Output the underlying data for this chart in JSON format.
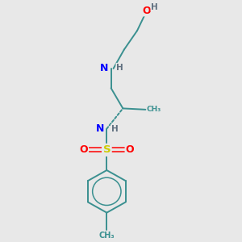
{
  "bg_color": "#e8e8e8",
  "atom_colors": {
    "C": "#3a9090",
    "N": "#0000ff",
    "O": "#ff0000",
    "S": "#cccc00",
    "H": "#607080"
  },
  "bond_color": "#3a9090",
  "bond_width": 1.4,
  "figsize": [
    3.0,
    3.0
  ],
  "dpi": 100
}
